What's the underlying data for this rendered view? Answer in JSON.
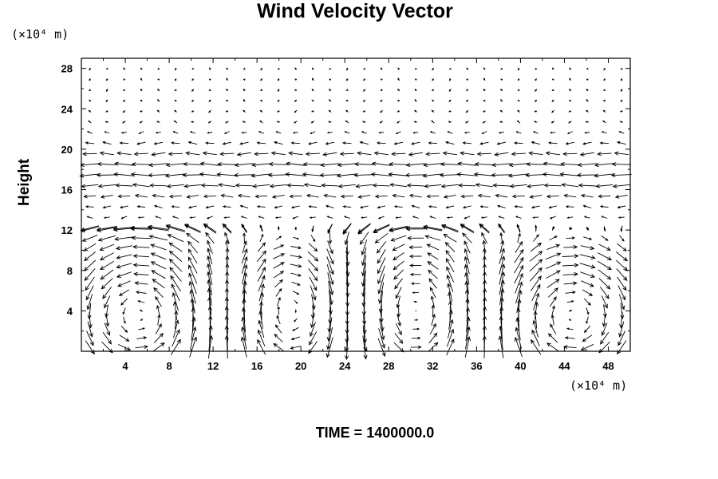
{
  "chart_data": {
    "type": "vector-field",
    "title": "Wind Velocity Vector",
    "ylabel": "Height",
    "xlabel": "",
    "x_unit": "(×10⁴ m)",
    "y_unit": "(×10⁴ m)",
    "xlim": [
      0,
      50
    ],
    "ylim": [
      0,
      29
    ],
    "x_ticks": [
      4,
      8,
      12,
      16,
      20,
      24,
      28,
      32,
      36,
      40,
      44,
      48
    ],
    "y_ticks": [
      4,
      8,
      12,
      16,
      20,
      24,
      28
    ],
    "footer": "TIME = 1400000.0",
    "cells": [
      {
        "center_x": 5.5,
        "center_y": 3.5,
        "rotation": "counterclockwise"
      },
      {
        "center_x": 20.5,
        "center_y": 4.0,
        "rotation": "clockwise"
      },
      {
        "center_x": 29.0,
        "center_y": 4.0,
        "rotation": "counterclockwise"
      },
      {
        "center_x": 44.5,
        "center_y": 3.5,
        "rotation": "clockwise"
      }
    ],
    "upper_flow": "westward",
    "jet_height": 18
  }
}
